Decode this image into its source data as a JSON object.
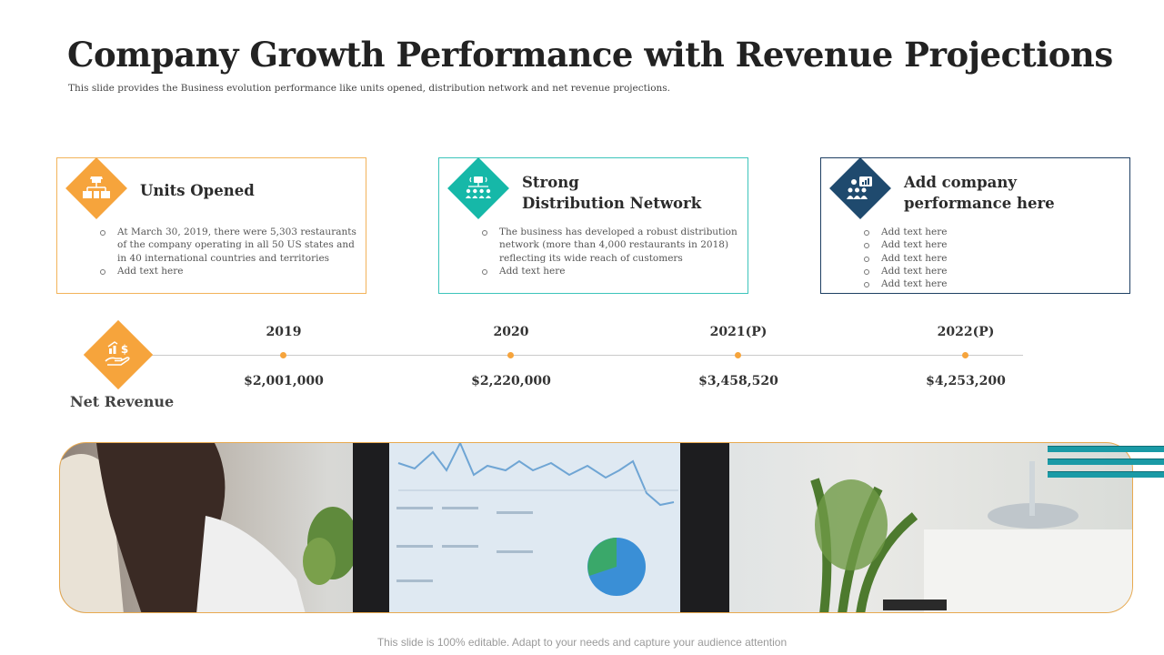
{
  "title": "Company Growth Performance with Revenue Projections",
  "subtitle": "This slide provides the Business evolution performance  like units opened,  distribution network and net revenue projections.",
  "cards": [
    {
      "title_line1": "Units Opened",
      "title_line2": "",
      "icon": "store-network-icon",
      "accent": "#f6a43c",
      "bullets": [
        "At March 30, 2019, there were 5,303 restaurants of the company operating in all 50 US states and in 40 international countries and territories",
        "Add text here"
      ]
    },
    {
      "title_line1": "Strong",
      "title_line2": "Distribution Network",
      "icon": "distribution-network-icon",
      "accent": "#16b8a8",
      "bullets": [
        "The business has developed a robust distribution network (more than 4,000 restaurants in 2018) reflecting its wide reach of customers",
        "Add text here"
      ]
    },
    {
      "title_line1": "Add company",
      "title_line2": "performance here",
      "icon": "team-presentation-icon",
      "accent": "#1f4a6e",
      "bullets": [
        "Add text here",
        "Add text here",
        "Add text here",
        "Add text here",
        "Add text here"
      ]
    }
  ],
  "net_revenue": {
    "label": "Net Revenue",
    "icon": "money-hand-icon",
    "timeline": [
      {
        "year": "2019",
        "value": "$2,001,000"
      },
      {
        "year": "2020",
        "value": "$2,220,000"
      },
      {
        "year": "2021(P)",
        "value": "$3,458,520"
      },
      {
        "year": "2022(P)",
        "value": "$4,253,200"
      }
    ]
  },
  "photo": {
    "description_icon": "analytics-dashboard-photo"
  },
  "footer": "This slide is 100% editable. Adapt to your needs and capture your audience attention",
  "colors": {
    "orange": "#f6a43c",
    "teal": "#16b8a8",
    "navy": "#1f4a6e"
  }
}
